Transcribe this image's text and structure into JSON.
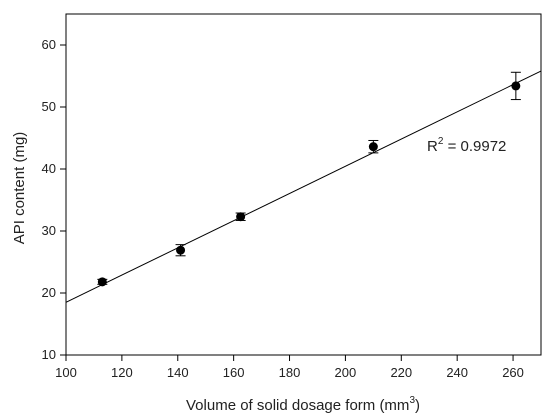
{
  "chart_data": {
    "type": "scatter",
    "xlabel": "Volume of solid dosage form (mm",
    "xlabel_sup": "3",
    "xlabel_suffix": ")",
    "ylabel": "API content (mg)",
    "xlim": [
      100,
      270
    ],
    "ylim": [
      10,
      65
    ],
    "xticks": [
      100,
      120,
      140,
      160,
      180,
      200,
      220,
      240,
      260
    ],
    "yticks": [
      10,
      20,
      30,
      40,
      50,
      60
    ],
    "grid": false,
    "points": [
      {
        "x": 113,
        "y": 21.8,
        "err": 0.4
      },
      {
        "x": 141,
        "y": 26.9,
        "err": 0.9
      },
      {
        "x": 162.5,
        "y": 32.3,
        "err": 0.6
      },
      {
        "x": 210,
        "y": 43.6,
        "err": 1.0
      },
      {
        "x": 261,
        "y": 53.4,
        "err": 2.2
      }
    ],
    "fit_line": {
      "x_start": 100,
      "y_start": 18.5,
      "x_end": 270,
      "y_end": 55.8
    },
    "annotation": {
      "prefix": "R",
      "sup": "2",
      "suffix": " = 0.9972"
    },
    "colors": {
      "marker": "#000000",
      "line": "#000000",
      "axis": "#000000"
    }
  }
}
